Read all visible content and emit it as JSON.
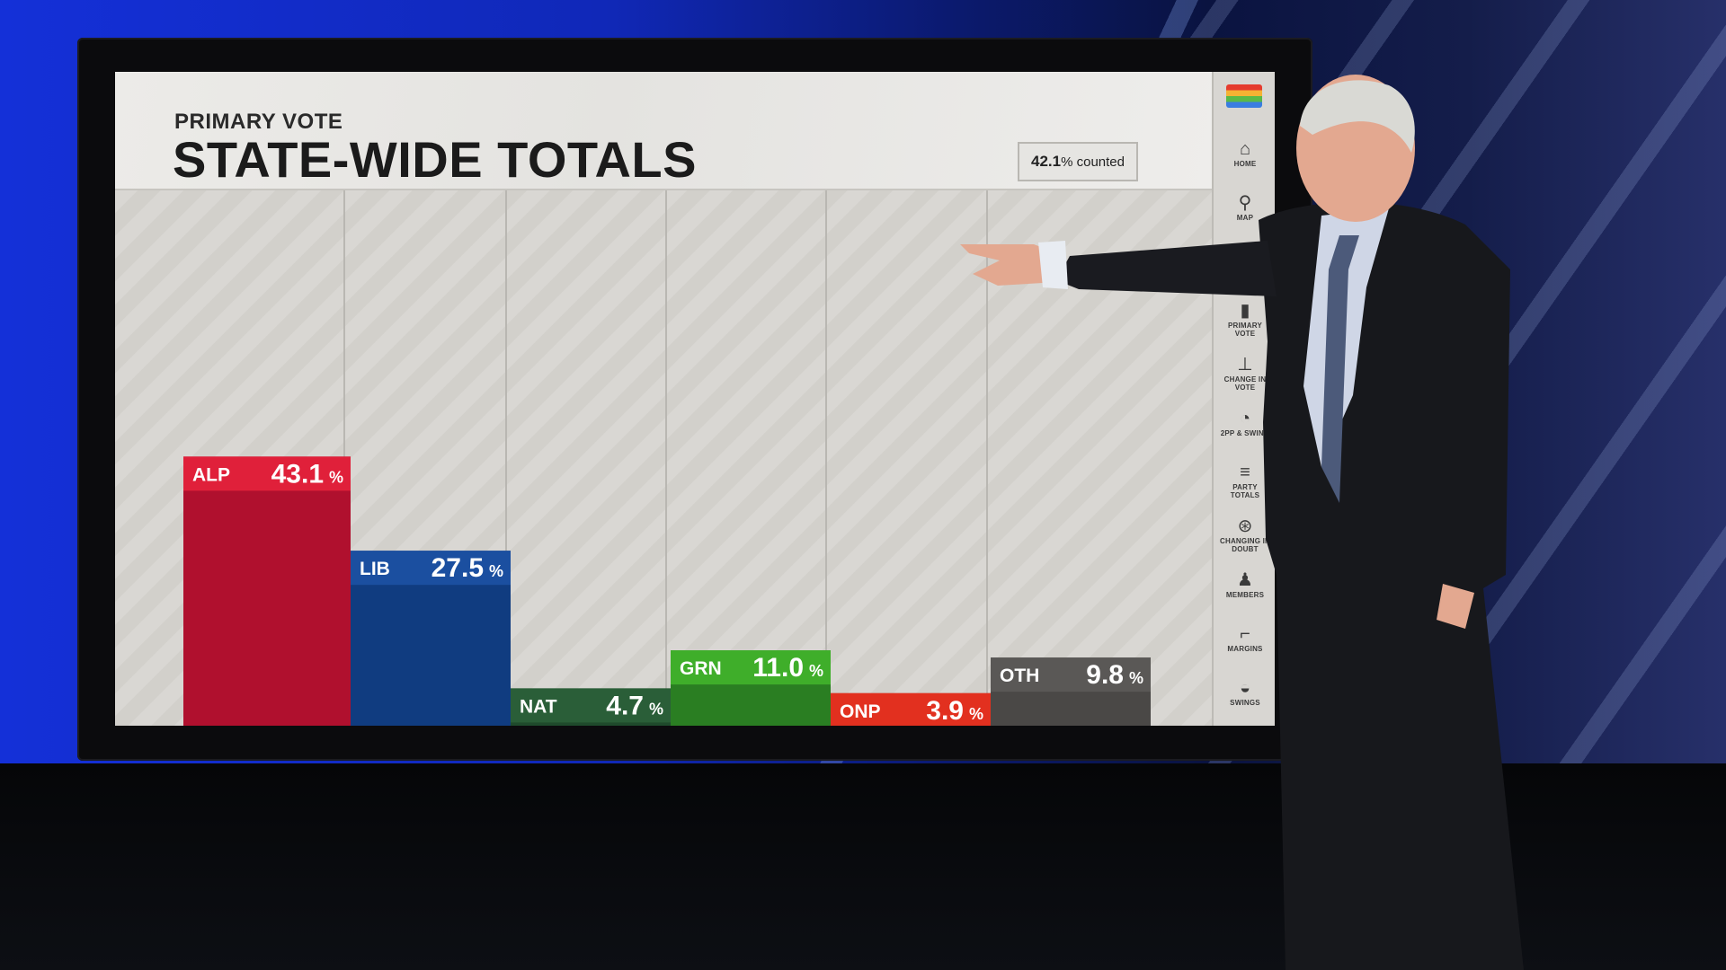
{
  "header": {
    "subtitle": "PRIMARY VOTE",
    "title": "STATE-WIDE TOTALS",
    "counted_value": "42.1",
    "counted_suffix": "% counted"
  },
  "menu": {
    "items": [
      {
        "label": "HOME",
        "icon": "home-icon"
      },
      {
        "label": "MAP",
        "icon": "map-pin-icon"
      },
      {
        "label": "PRIMARY VOTE",
        "icon": "bar-chart-icon"
      },
      {
        "label": "CHANGE IN VOTE",
        "icon": "change-chart-icon"
      },
      {
        "label": "2PP & SWING",
        "icon": "swing-icon"
      },
      {
        "label": "PARTY TOTALS",
        "icon": "party-totals-icon"
      },
      {
        "label": "CHANGING IN DOUBT",
        "icon": "in-doubt-icon"
      },
      {
        "label": "MEMBERS",
        "icon": "members-icon"
      },
      {
        "label": "MARGINS",
        "icon": "margins-icon"
      },
      {
        "label": "SWINGS",
        "icon": "swings-icon"
      }
    ]
  },
  "chart_data": {
    "type": "bar",
    "categories": [
      "ALP",
      "LIB",
      "NAT",
      "GRN",
      "ONP",
      "OTH"
    ],
    "values": [
      43.1,
      27.5,
      4.7,
      11.0,
      3.9,
      9.8
    ],
    "value_labels": [
      "43.1",
      "27.5",
      "4.7",
      "11.0",
      "3.9",
      "9.8"
    ],
    "unit": "%",
    "title": "STATE-WIDE TOTALS",
    "subtitle": "PRIMARY VOTE",
    "ylim": [
      0,
      52
    ],
    "grid": false,
    "legend": "none",
    "colors": {
      "ALP": {
        "bar": "#b0102e",
        "label": "#e0203a"
      },
      "LIB": {
        "bar": "#103c80",
        "label": "#1b4fa0"
      },
      "NAT": {
        "bar": "#1f4a2c",
        "label": "#2a5e38"
      },
      "GRN": {
        "bar": "#2a7e22",
        "label": "#3fae2a"
      },
      "ONP": {
        "bar": "#b8221a",
        "label": "#e2301f"
      },
      "OTH": {
        "bar": "#4a4846",
        "label": "#5a5856"
      }
    }
  }
}
